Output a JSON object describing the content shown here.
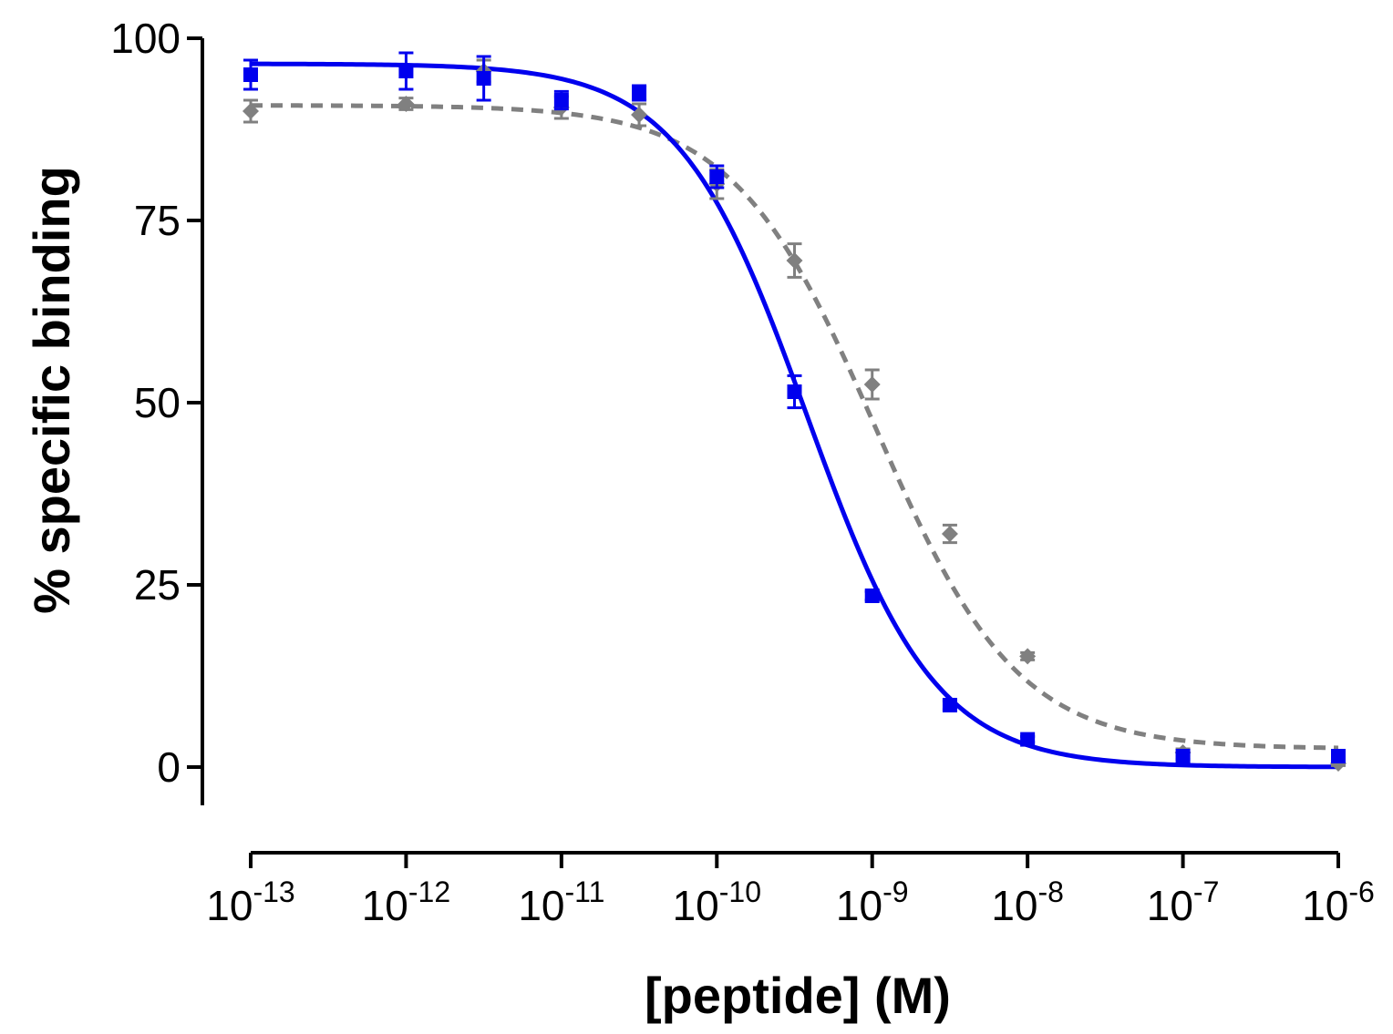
{
  "chart_data": {
    "type": "scatter",
    "title": "",
    "xlabel": "[peptide] (M)",
    "ylabel": "% specific binding",
    "xscale": "log10",
    "xlim_exponent": [
      -13,
      -6
    ],
    "ylim": [
      -5,
      100
    ],
    "x_ticks": [
      {
        "base": "10",
        "exp": "-13",
        "value": -13
      },
      {
        "base": "10",
        "exp": "-12",
        "value": -12
      },
      {
        "base": "10",
        "exp": "-11",
        "value": -11
      },
      {
        "base": "10",
        "exp": "-10",
        "value": -10
      },
      {
        "base": "10",
        "exp": "-9",
        "value": -9
      },
      {
        "base": "10",
        "exp": "-8",
        "value": -8
      },
      {
        "base": "10",
        "exp": "-7",
        "value": -7
      },
      {
        "base": "10",
        "exp": "-6",
        "value": -6
      }
    ],
    "y_ticks": [
      {
        "label": "100",
        "value": 100
      },
      {
        "label": "75",
        "value": 75
      },
      {
        "label": "50",
        "value": 50
      },
      {
        "label": "25",
        "value": 25
      },
      {
        "label": "0",
        "value": 0
      }
    ],
    "grid": false,
    "legend": "none",
    "series": [
      {
        "name": "blue",
        "color": "#0000ee",
        "marker": "square",
        "line_style": "solid",
        "log_x": [
          -13,
          -12,
          -11.5,
          -11,
          -10.5,
          -10,
          -9.5,
          -9,
          -8.5,
          -8,
          -7,
          -6
        ],
        "y": [
          95.0,
          95.5,
          94.5,
          91.5,
          92.5,
          81.0,
          51.5,
          23.5,
          8.5,
          3.8,
          1.5,
          1.5
        ],
        "err": [
          2.0,
          2.5,
          3.0,
          1.2,
          1.0,
          1.5,
          2.2,
          0.6,
          0.6,
          0.4,
          0.4,
          0.3
        ],
        "fit": {
          "top": 96.5,
          "bottom": 0.0,
          "log_ic50": -9.42,
          "hill": 1.05
        }
      },
      {
        "name": "gray",
        "color": "#808080",
        "marker": "diamond",
        "line_style": "dashed",
        "log_x": [
          -13,
          -12,
          -11.5,
          -11,
          -10.5,
          -10,
          -9.5,
          -9,
          -8.5,
          -8,
          -7,
          -6
        ],
        "y": [
          90.0,
          91.0,
          95.5,
          90.5,
          89.5,
          80.0,
          69.5,
          52.5,
          32.0,
          15.2,
          2.0,
          0.5
        ],
        "err": [
          1.5,
          0.8,
          1.5,
          1.5,
          1.5,
          2.0,
          2.3,
          2.0,
          1.2,
          0.5,
          0.5,
          0.3
        ],
        "fit": {
          "top": 90.8,
          "bottom": 2.5,
          "log_ic50": -8.98,
          "hill": 0.95
        }
      }
    ]
  }
}
